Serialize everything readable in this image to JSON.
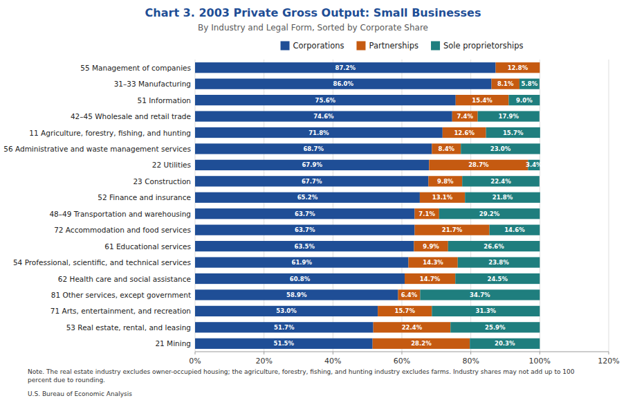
{
  "chart_data": {
    "type": "bar",
    "orientation": "horizontal",
    "stacked": true,
    "data_labels": true,
    "grid": true,
    "legend": "top",
    "title": "Chart 3. 2003 Private Gross Output: Small Businesses",
    "subtitle": "By Industry and Legal Form, Sorted by Corporate Share",
    "note": "Note. The real estate industry excludes owner-occupied housing; the agriculture, forestry, fishing, and hunting industry excludes farms. Industry shares may not add up to 100\npercent due to rounding.",
    "source": "U.S. Bureau of Economic Analysis",
    "categories": [
      "55 Management of companies",
      "31–33 Manufacturing",
      "51 Information",
      "42–45 Wholesale and retail trade",
      "11 Agriculture, forestry, fishing, and hunting",
      "56 Administrative and waste management services",
      "22 Utilities",
      "23 Construction",
      "52 Finance and insurance",
      "48–49 Transportation and warehousing",
      "72 Accommodation and food services",
      "61 Educational services",
      "54 Professional, scientific, and technical services",
      "62 Health care and social assistance",
      "81 Other services, except government",
      "71 Arts, entertainment, and recreation",
      "53 Real estate, rental, and leasing",
      "21 Mining"
    ],
    "series": [
      {
        "name": "Corporations",
        "color": "#1f4e96",
        "values": [
          87.2,
          86.0,
          75.6,
          74.6,
          71.8,
          68.7,
          67.9,
          67.7,
          65.2,
          63.7,
          63.7,
          63.5,
          61.9,
          60.8,
          58.9,
          53.0,
          51.7,
          51.5
        ],
        "value_labels": [
          "87.2%",
          "86.0%",
          "75.6%",
          "74.6%",
          "71.8%",
          "68.7%",
          "67.9%",
          "67.7%",
          "65.2%",
          "63.7%",
          "63.7%",
          "63.5%",
          "61.9%",
          "60.8%",
          "58.9%",
          "53.0%",
          "51.7%",
          "51.5%"
        ]
      },
      {
        "name": "Partnerships",
        "color": "#c55a11",
        "values": [
          12.8,
          8.1,
          15.4,
          7.4,
          12.6,
          8.4,
          28.7,
          9.8,
          13.1,
          7.1,
          21.7,
          9.9,
          14.3,
          14.7,
          6.4,
          15.7,
          22.4,
          28.2
        ],
        "value_labels": [
          "12.8%",
          "8.1%",
          "15.4%",
          "7.4%",
          "12.6%",
          "8.4%",
          "28.7%",
          "9.8%",
          "13.1%",
          "7.1%",
          "21.7%",
          "9.9%",
          "14.3%",
          "14.7%",
          "6.4%",
          "15.7%",
          "22.4%",
          "28.2%"
        ]
      },
      {
        "name": "Sole proprietorships",
        "color": "#1f7e7e",
        "values": [
          0.0,
          5.8,
          9.0,
          17.9,
          15.7,
          23.0,
          3.4,
          22.4,
          21.8,
          29.2,
          14.6,
          26.6,
          23.8,
          24.5,
          34.7,
          31.3,
          25.9,
          20.3
        ],
        "value_labels": [
          null,
          "5.8%",
          "9.0%",
          "17.9%",
          "15.7%",
          "23.0%",
          "3.4%",
          "22.4%",
          "21.8%",
          "29.2%",
          "14.6%",
          "26.6%",
          "23.8%",
          "24.5%",
          "34.7%",
          "31.3%",
          "25.9%",
          "20.3%"
        ]
      }
    ],
    "xlim": [
      0,
      120
    ],
    "xticks": [
      {
        "value": 0,
        "label": "0%"
      },
      {
        "value": 20,
        "label": "20%"
      },
      {
        "value": 40,
        "label": "40%"
      },
      {
        "value": 60,
        "label": "60%"
      },
      {
        "value": 80,
        "label": "80%"
      },
      {
        "value": 100,
        "label": "100%"
      },
      {
        "value": 120,
        "label": "120%"
      }
    ]
  }
}
